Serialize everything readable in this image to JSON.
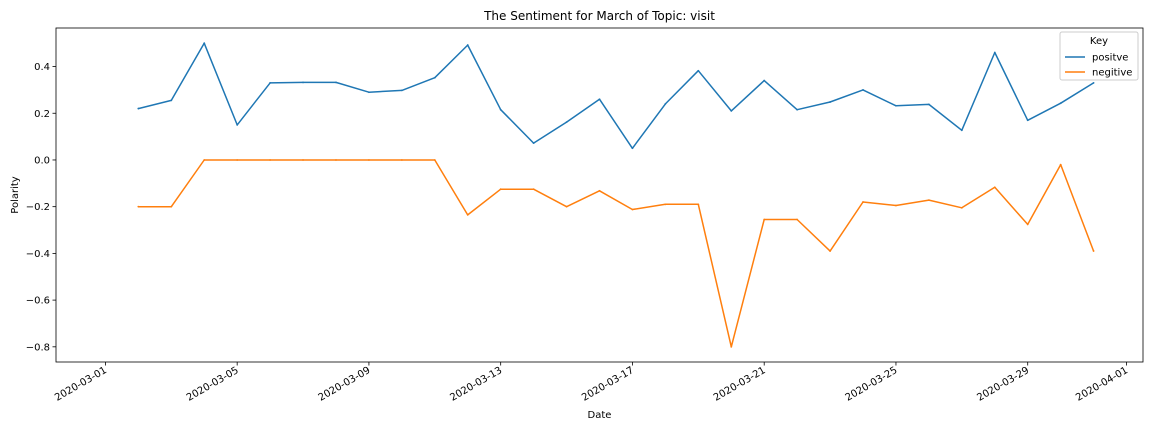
{
  "chart_data": {
    "type": "line",
    "title": "The Sentiment for March of Topic: visit",
    "xlabel": "Date",
    "ylabel": "Polarity",
    "x": [
      "2020-03-02",
      "2020-03-03",
      "2020-03-04",
      "2020-03-05",
      "2020-03-06",
      "2020-03-07",
      "2020-03-08",
      "2020-03-09",
      "2020-03-10",
      "2020-03-11",
      "2020-03-12",
      "2020-03-13",
      "2020-03-14",
      "2020-03-15",
      "2020-03-16",
      "2020-03-17",
      "2020-03-18",
      "2020-03-19",
      "2020-03-20",
      "2020-03-21",
      "2020-03-22",
      "2020-03-23",
      "2020-03-24",
      "2020-03-25",
      "2020-03-26",
      "2020-03-27",
      "2020-03-28",
      "2020-03-29",
      "2020-03-30",
      "2020-03-31"
    ],
    "series": [
      {
        "name": "positve",
        "color": "#1f77b4",
        "values": [
          0.22,
          0.255,
          0.5,
          0.15,
          0.33,
          0.332,
          0.332,
          0.29,
          0.298,
          0.352,
          0.492,
          0.215,
          0.072,
          0.162,
          0.26,
          0.05,
          0.24,
          0.382,
          0.21,
          0.34,
          0.215,
          0.248,
          0.3,
          0.232,
          0.238,
          0.127,
          0.46,
          0.17,
          0.243,
          0.33
        ]
      },
      {
        "name": "negitive",
        "color": "#ff7f0e",
        "values": [
          -0.2,
          -0.2,
          0.0,
          0.0,
          0.0,
          0.0,
          0.0,
          0.0,
          0.0,
          0.0,
          -0.235,
          -0.125,
          -0.125,
          -0.2,
          -0.132,
          -0.212,
          -0.19,
          -0.19,
          -0.8,
          -0.255,
          -0.255,
          -0.39,
          -0.18,
          -0.195,
          -0.172,
          -0.205,
          -0.117,
          -0.276,
          -0.02,
          -0.39
        ]
      }
    ],
    "x_ticks": [
      "2020-03-01",
      "2020-03-05",
      "2020-03-09",
      "2020-03-13",
      "2020-03-17",
      "2020-03-21",
      "2020-03-25",
      "2020-03-29",
      "2020-04-01"
    ],
    "x_range": [
      "2020-02-28T12:00",
      "2020-04-01T12:00"
    ],
    "y_ticks": [
      "0.4",
      "0.2",
      "0.0",
      "−0.2",
      "−0.4",
      "−0.6",
      "−0.8"
    ],
    "y_tick_values": [
      0.4,
      0.2,
      0.0,
      -0.2,
      -0.4,
      -0.6,
      -0.8
    ],
    "ylim": [
      -0.865,
      0.565
    ],
    "grid": false,
    "legend": {
      "title": "Key",
      "position": "top-right"
    }
  }
}
